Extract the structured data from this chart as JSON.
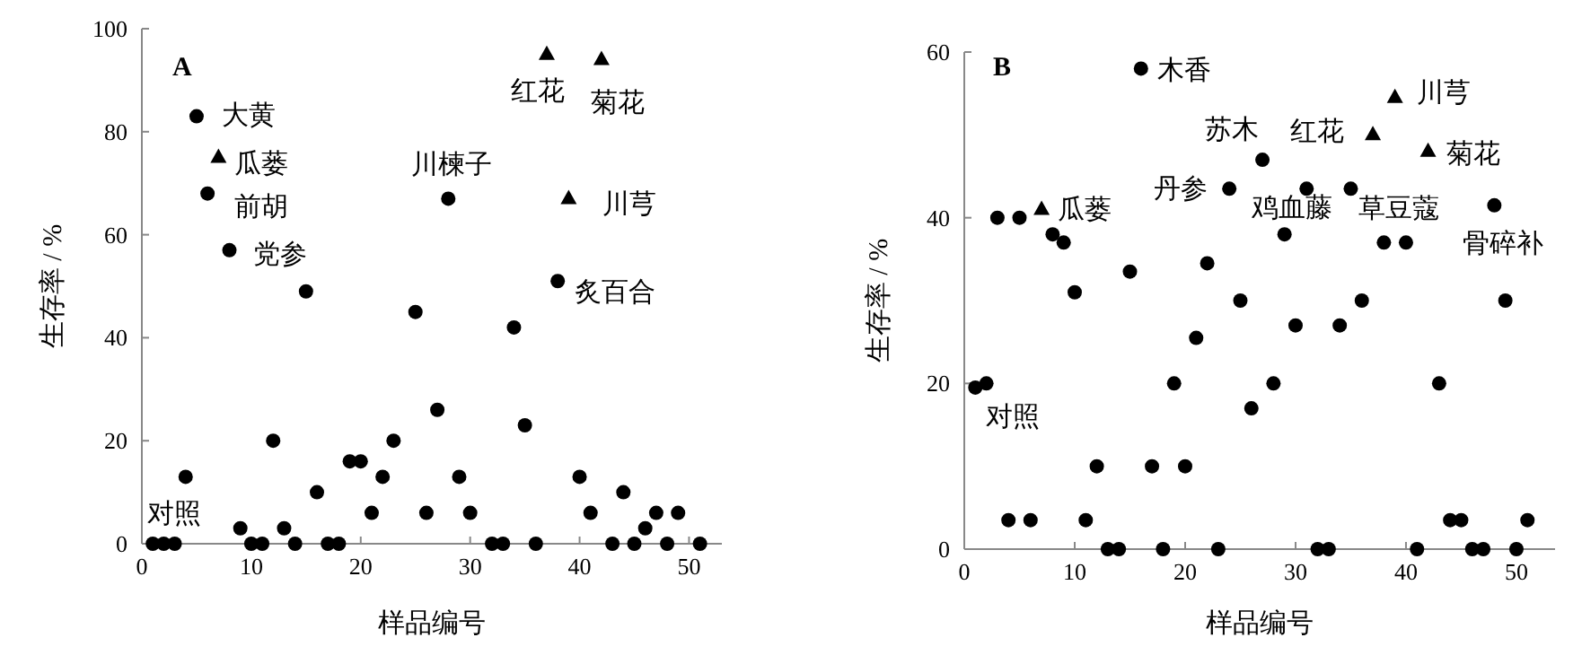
{
  "chart_data": [
    {
      "type": "scatter",
      "xlabel": "样品编号",
      "ylabel": "生存率 / %",
      "xlim": [
        0,
        53
      ],
      "ylim": [
        0,
        100
      ],
      "xticks": [
        0,
        10,
        20,
        30,
        40,
        50
      ],
      "yticks": [
        0,
        20,
        40,
        60,
        80,
        100
      ],
      "series": [
        {
          "color": "#000000",
          "marker": "circle",
          "x": [
            1,
            2,
            3,
            4,
            5,
            6,
            8,
            9,
            10,
            11,
            12,
            13,
            14,
            15,
            16,
            17,
            18,
            19,
            20,
            21,
            22,
            23,
            25,
            26,
            27,
            28,
            29,
            30,
            32,
            33,
            34,
            35,
            36,
            38,
            40,
            41,
            43,
            44,
            45,
            46,
            47,
            48,
            49,
            51
          ],
          "values": [
            0,
            0,
            0,
            13,
            83,
            68,
            57,
            3,
            0,
            0,
            20,
            3,
            0,
            49,
            10,
            0,
            0,
            16,
            16,
            6,
            13,
            20,
            45,
            6,
            26,
            67,
            13,
            6,
            0,
            0,
            42,
            23,
            0,
            51,
            13,
            6,
            0,
            10,
            0,
            3,
            6,
            0,
            6,
            0
          ]
        },
        {
          "color": "#000000",
          "marker": "triangle",
          "x": [
            7,
            37,
            39,
            42
          ],
          "values": [
            75,
            95,
            67,
            94
          ]
        }
      ],
      "annotations": [
        "A",
        {
          "text": "大黄",
          "x": 5,
          "y": 83
        },
        {
          "text": "瓜蒌",
          "x": 7,
          "y": 75
        },
        {
          "text": "前胡",
          "x": 6,
          "y": 68
        },
        {
          "text": "党参",
          "x": 8,
          "y": 57
        },
        {
          "text": "川楝子",
          "x": 28,
          "y": 67
        },
        {
          "text": "红花",
          "x": 37,
          "y": 95
        },
        {
          "text": "菊花",
          "x": 42,
          "y": 94
        },
        {
          "text": "川芎",
          "x": 39,
          "y": 67
        },
        {
          "text": "炙百合",
          "x": 38,
          "y": 51
        },
        {
          "text": "对照",
          "x": 1,
          "y": 0
        }
      ]
    },
    {
      "type": "scatter",
      "xlabel": "样品编号",
      "ylabel": "生存率 / %",
      "xlim": [
        0,
        53.5
      ],
      "ylim": [
        0,
        60
      ],
      "xticks": [
        0,
        10,
        20,
        30,
        40,
        50
      ],
      "yticks": [
        0,
        20,
        40,
        60
      ],
      "series": [
        {
          "color": "#000000",
          "marker": "circle",
          "x": [
            1,
            2,
            3,
            4,
            5,
            6,
            8,
            9,
            10,
            11,
            12,
            13,
            14,
            15,
            16,
            17,
            18,
            19,
            20,
            21,
            22,
            23,
            24,
            25,
            26,
            27,
            28,
            29,
            30,
            31,
            32,
            33,
            34,
            35,
            36,
            38,
            40,
            41,
            43,
            44,
            45,
            46,
            47,
            48,
            49,
            50,
            51
          ],
          "values": [
            19.5,
            20,
            40,
            3.5,
            40,
            3.5,
            38,
            37,
            31,
            3.5,
            10,
            0,
            0,
            33.5,
            58,
            10,
            0,
            20,
            10,
            25.5,
            34.5,
            0,
            43.5,
            30,
            17,
            47,
            20,
            38,
            27,
            43.5,
            0,
            0,
            27,
            43.5,
            30,
            37,
            37,
            0,
            20,
            3.5,
            3.5,
            0,
            0,
            41.5,
            30,
            0,
            3.5
          ]
        },
        {
          "color": "#000000",
          "marker": "triangle",
          "x": [
            7,
            37,
            39,
            42
          ],
          "values": [
            41,
            50,
            54.5,
            48
          ]
        }
      ],
      "annotations": [
        "B",
        {
          "text": "木香",
          "x": 16,
          "y": 58
        },
        {
          "text": "瓜蒌",
          "x": 7,
          "y": 41
        },
        {
          "text": "丹参",
          "x": 24,
          "y": 43.5
        },
        {
          "text": "苏木",
          "x": 27,
          "y": 47
        },
        {
          "text": "鸡血藤",
          "x": 29,
          "y": 38
        },
        {
          "text": "红花",
          "x": 37,
          "y": 50
        },
        {
          "text": "川芎",
          "x": 39,
          "y": 54.5
        },
        {
          "text": "菊花",
          "x": 42,
          "y": 48
        },
        {
          "text": "草豆蔻",
          "x": 40,
          "y": 37
        },
        {
          "text": "骨碎补",
          "x": 48,
          "y": 41.5
        },
        {
          "text": "对照",
          "x": 1,
          "y": 19.5
        }
      ]
    }
  ]
}
